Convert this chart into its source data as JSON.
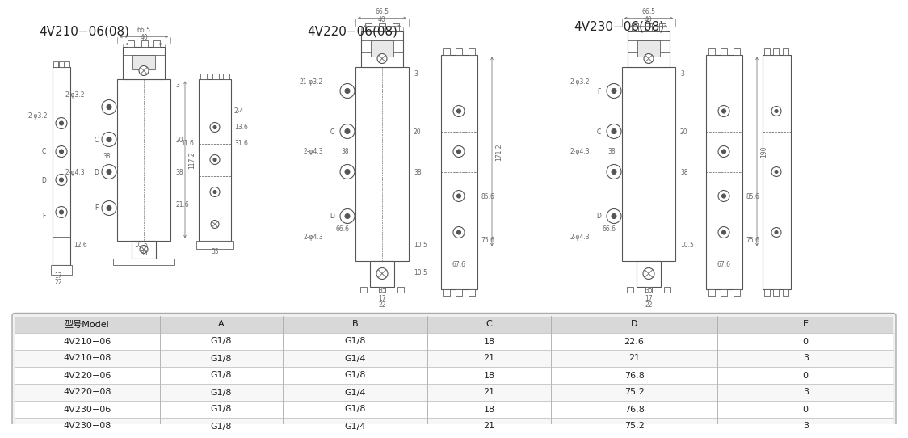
{
  "title1": "4V210−06(08)",
  "title2": "4V220−06(08)",
  "title3": "4V230−06(08)",
  "bg_color": "#ffffff",
  "table_header": [
    "型号Model",
    "A",
    "B",
    "C",
    "D",
    "E"
  ],
  "table_rows": [
    [
      "4V210−06",
      "G1/8",
      "G1/8",
      "18",
      "22.6",
      "0"
    ],
    [
      "4V210−08",
      "G1/8",
      "G1/4",
      "21",
      "21",
      "3"
    ],
    [
      "4V220−06",
      "G1/8",
      "G1/8",
      "18",
      "76.8",
      "0"
    ],
    [
      "4V220−08",
      "G1/8",
      "G1/4",
      "21",
      "75.2",
      "3"
    ],
    [
      "4V230−06",
      "G1/8",
      "G1/8",
      "18",
      "76.8",
      "0"
    ],
    [
      "4V230−08",
      "G1/8",
      "G1/4",
      "21",
      "75.2",
      "3"
    ]
  ],
  "drawing_color": "#555555",
  "dim_color": "#666666",
  "line_width": 0.8,
  "title_fontsize": 11,
  "table_font": 8,
  "dim_font": 5.5
}
